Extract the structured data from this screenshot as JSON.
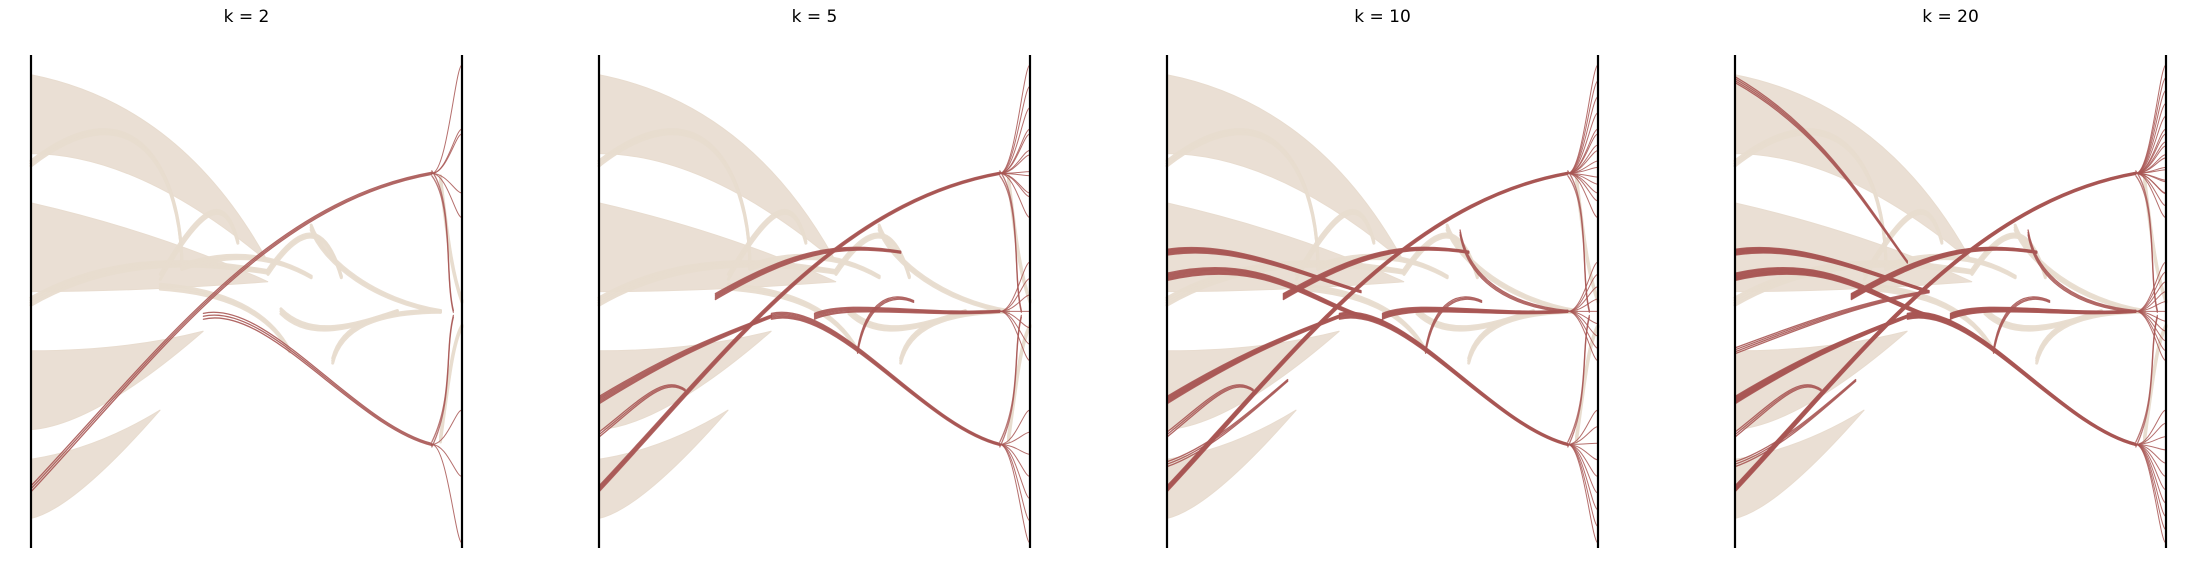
{
  "figure": {
    "panels": [
      {
        "title": "k = 2",
        "highlight_level": 1
      },
      {
        "title": "k = 5",
        "highlight_level": 2
      },
      {
        "title": "k = 10",
        "highlight_level": 3
      },
      {
        "title": "k = 20",
        "highlight_level": 4
      }
    ]
  },
  "colors": {
    "background_flow": "#e8dccf",
    "highlight_flow": "#a85654",
    "axis_line": "#000000"
  }
}
